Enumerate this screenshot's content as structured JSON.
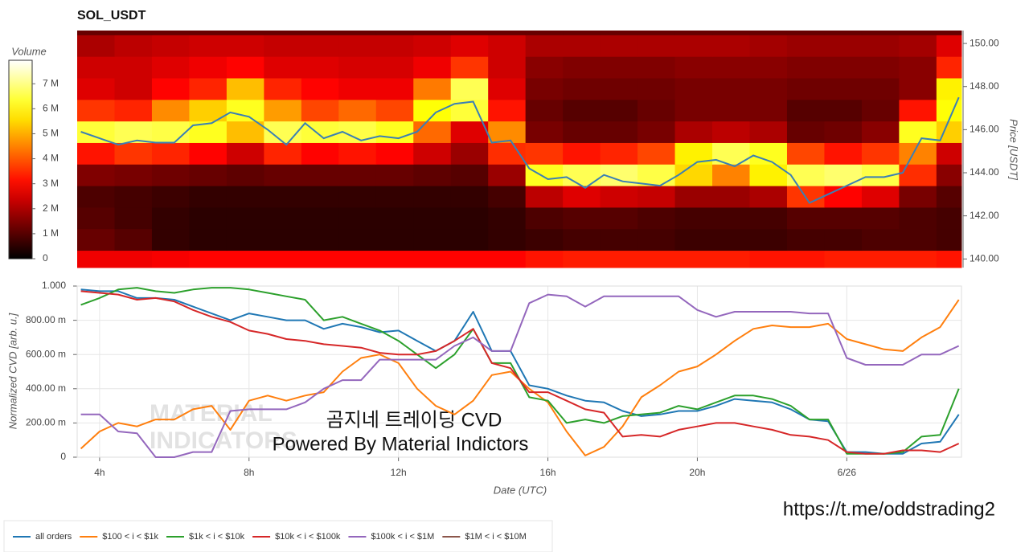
{
  "chart_data": [
    {
      "type": "heatmap",
      "title": "SOL_USDT",
      "ylabel": "Price [USDT]",
      "xlim": [
        3.4,
        27.07
      ],
      "ylim": [
        139.6,
        150.6
      ],
      "yticks": [
        {
          "value": 140,
          "label": "140.00"
        },
        {
          "value": 142,
          "label": "142.00"
        },
        {
          "value": 144,
          "label": "144.00"
        },
        {
          "value": 146,
          "label": "146.00"
        },
        {
          "value": 148,
          "label": "148.00"
        },
        {
          "value": 150,
          "label": "150.00"
        }
      ],
      "xbins": [
        3.4,
        4.4,
        5.4,
        6.4,
        7.4,
        8.4,
        9.4,
        10.4,
        11.4,
        12.4,
        13.4,
        14.4,
        15.4,
        16.4,
        17.4,
        18.4,
        19.4,
        20.4,
        21.4,
        22.4,
        23.4,
        24.4,
        25.4,
        26.4,
        27.07
      ],
      "ybins": [
        139.6,
        140.4,
        141.4,
        142.4,
        143.4,
        144.4,
        145.4,
        146.4,
        147.4,
        148.4,
        149.4,
        150.4,
        150.6
      ],
      "values": [
        [
          2.8,
          2.8,
          2.9,
          3,
          3,
          3,
          3,
          3,
          3,
          3,
          3,
          3,
          3.2,
          3.3,
          3.3,
          3.3,
          3.3,
          3.3,
          3.2,
          3.2,
          3.3,
          3.3,
          3.3,
          3.2
        ],
        [
          1.2,
          1.0,
          0.6,
          0.5,
          0.5,
          0.5,
          0.5,
          0.5,
          0.5,
          0.5,
          0.5,
          0.6,
          0.7,
          0.8,
          0.8,
          0.8,
          0.7,
          0.7,
          0.7,
          0.8,
          0.8,
          0.9,
          0.9,
          0.8
        ],
        [
          1.0,
          0.8,
          0.6,
          0.5,
          0.5,
          0.5,
          0.5,
          0.5,
          0.5,
          0.5,
          0.5,
          0.6,
          0.9,
          1.0,
          1.0,
          0.9,
          0.8,
          0.8,
          0.8,
          1.0,
          1.0,
          1.0,
          0.9,
          0.8
        ],
        [
          0.9,
          0.8,
          0.7,
          0.6,
          0.6,
          0.6,
          0.6,
          0.6,
          0.6,
          0.6,
          0.6,
          0.8,
          2.2,
          2.6,
          2.4,
          2.3,
          1.8,
          1.8,
          2.0,
          3.6,
          3.0,
          2.6,
          1.4,
          1.0
        ],
        [
          1.5,
          1.4,
          1.3,
          1.2,
          1.1,
          1.2,
          1.2,
          1.2,
          1.2,
          1.1,
          1.0,
          1.8,
          6.2,
          6.6,
          6.8,
          6.5,
          5.5,
          4.5,
          5.8,
          6.6,
          6.8,
          6.5,
          3.5,
          1.6
        ],
        [
          3.2,
          3.6,
          3.4,
          3.0,
          2.4,
          3.4,
          3.0,
          3.2,
          3.0,
          2.4,
          1.8,
          3.5,
          3.6,
          3.2,
          3.4,
          3.8,
          5.8,
          6.6,
          6.2,
          3.8,
          3.2,
          3.6,
          4.5,
          2.4
        ],
        [
          6.4,
          6.6,
          6.5,
          6.2,
          5.2,
          6.6,
          6.4,
          6.5,
          6.2,
          4.2,
          2.6,
          4.6,
          1.4,
          1.2,
          1.2,
          1.4,
          2.0,
          2.2,
          2.0,
          1.2,
          1.3,
          1.6,
          6.2,
          5.4
        ],
        [
          3.6,
          3.4,
          4.6,
          5.4,
          6.2,
          4.8,
          3.8,
          4.2,
          3.8,
          6.0,
          6.4,
          3.2,
          1.2,
          1.0,
          1.0,
          1.2,
          1.4,
          1.4,
          1.4,
          1.0,
          1.0,
          1.2,
          3.2,
          6.0
        ],
        [
          2.6,
          2.4,
          3.0,
          3.4,
          5.2,
          3.4,
          3.0,
          2.8,
          2.8,
          4.4,
          6.6,
          2.6,
          1.4,
          1.3,
          1.3,
          1.3,
          1.4,
          1.4,
          1.4,
          1.3,
          1.3,
          1.3,
          1.6,
          5.8
        ],
        [
          2.4,
          2.4,
          2.6,
          2.8,
          3.0,
          2.6,
          2.6,
          2.5,
          2.5,
          2.8,
          3.6,
          2.4,
          1.6,
          1.5,
          1.5,
          1.5,
          1.6,
          1.6,
          1.6,
          1.5,
          1.5,
          1.5,
          1.6,
          3.4
        ],
        [
          2.0,
          2.2,
          2.3,
          2.4,
          2.4,
          2.3,
          2.3,
          2.3,
          2.3,
          2.4,
          2.6,
          2.4,
          2.0,
          2.0,
          2.0,
          2.0,
          2.0,
          2.0,
          1.9,
          1.8,
          1.8,
          1.8,
          1.9,
          2.6
        ],
        [
          1.2,
          1.2,
          1.2,
          1.2,
          1.2,
          1.2,
          1.2,
          1.2,
          1.2,
          1.2,
          1.2,
          1.2,
          1.2,
          1.2,
          1.2,
          1.2,
          1.2,
          1.2,
          1.2,
          1.2,
          1.2,
          1.2,
          1.2,
          1.2
        ]
      ],
      "colorbar": {
        "title": "Volume",
        "clim": [
          0,
          7.94
        ],
        "colormap": "hot",
        "ticks": [
          0,
          {
            "value": 1,
            "label": "1 M"
          },
          {
            "value": 2,
            "label": "2 M"
          },
          {
            "value": 3,
            "label": "3 M"
          },
          {
            "value": 4,
            "label": "4 M"
          },
          {
            "value": 5,
            "label": "5 M"
          },
          {
            "value": 6,
            "label": "6 M"
          },
          {
            "value": 7,
            "label": "7 M"
          }
        ]
      },
      "line": {
        "color": "#3a7fb5",
        "x": [
          3.5,
          4,
          4.5,
          5,
          5.5,
          6,
          6.5,
          7,
          7.5,
          8,
          8.5,
          9,
          9.5,
          10,
          10.5,
          11,
          11.5,
          12,
          12.5,
          13,
          13.5,
          14,
          14.5,
          15,
          15.5,
          16,
          16.5,
          17,
          17.5,
          18,
          18.5,
          19,
          19.5,
          20,
          20.5,
          21,
          21.5,
          22,
          22.5,
          23,
          23.5,
          24,
          24.5,
          25,
          25.5,
          26,
          26.5,
          27
        ],
        "values": [
          145.9,
          145.6,
          145.3,
          145.5,
          145.4,
          145.4,
          146.2,
          146.3,
          146.8,
          146.6,
          146.0,
          145.3,
          146.3,
          145.6,
          145.9,
          145.5,
          145.7,
          145.6,
          145.9,
          146.8,
          147.2,
          147.3,
          145.4,
          145.5,
          144.2,
          143.7,
          143.8,
          143.3,
          143.9,
          143.6,
          143.5,
          143.4,
          143.9,
          144.5,
          144.6,
          144.3,
          144.8,
          144.5,
          143.9,
          142.6,
          143.0,
          143.4,
          143.8,
          143.8,
          144.0,
          145.6,
          145.5,
          147.5
        ]
      }
    },
    {
      "type": "line",
      "xlabel": "Date (UTC)",
      "ylabel": "Normalized CVD [arb. u.]",
      "grid": true,
      "legend": "bottom-left",
      "xlim": [
        3.4,
        27.07
      ],
      "ylim": [
        0,
        1
      ],
      "xticks": [
        {
          "value": 4,
          "label": "4h"
        },
        {
          "value": 8,
          "label": "8h"
        },
        {
          "value": 12,
          "label": "12h"
        },
        {
          "value": 16,
          "label": "16h"
        },
        {
          "value": 20,
          "label": "20h"
        },
        {
          "value": 24,
          "label": "6/26"
        }
      ],
      "yticks": [
        0,
        {
          "value": 0.2,
          "label": "200.00 m"
        },
        {
          "value": 0.4,
          "label": "400.00 m"
        },
        {
          "value": 0.6,
          "label": "600.00 m"
        },
        {
          "value": 0.8,
          "label": "800.00 m"
        },
        {
          "value": 1,
          "label": "1.000"
        }
      ],
      "x": [
        3.5,
        4,
        4.5,
        5,
        5.5,
        6,
        6.5,
        7,
        7.5,
        8,
        8.5,
        9,
        9.5,
        10,
        10.5,
        11,
        11.5,
        12,
        12.5,
        13,
        13.5,
        14,
        14.5,
        15,
        15.5,
        16,
        16.5,
        17,
        17.5,
        18,
        18.5,
        19,
        19.5,
        20,
        20.5,
        21,
        21.5,
        22,
        22.5,
        23,
        23.5,
        24,
        24.5,
        25,
        25.5,
        26,
        26.5,
        27
      ],
      "series": [
        {
          "name": "all orders",
          "color": "#1f77b4",
          "values": [
            0.98,
            0.97,
            0.97,
            0.93,
            0.93,
            0.92,
            0.88,
            0.84,
            0.8,
            0.84,
            0.82,
            0.8,
            0.8,
            0.75,
            0.78,
            0.76,
            0.73,
            0.74,
            0.68,
            0.62,
            0.68,
            0.85,
            0.62,
            0.62,
            0.42,
            0.4,
            0.36,
            0.33,
            0.32,
            0.27,
            0.24,
            0.25,
            0.27,
            0.27,
            0.3,
            0.34,
            0.33,
            0.32,
            0.28,
            0.22,
            0.21,
            0.03,
            0.03,
            0.02,
            0.02,
            0.08,
            0.09,
            0.25
          ]
        },
        {
          "name": "$100 < i < $1k",
          "color": "#ff7f0e",
          "values": [
            0.05,
            0.15,
            0.2,
            0.18,
            0.22,
            0.22,
            0.28,
            0.3,
            0.16,
            0.33,
            0.36,
            0.33,
            0.36,
            0.38,
            0.5,
            0.58,
            0.6,
            0.55,
            0.4,
            0.3,
            0.25,
            0.33,
            0.48,
            0.5,
            0.4,
            0.32,
            0.15,
            0.01,
            0.06,
            0.18,
            0.35,
            0.42,
            0.5,
            0.53,
            0.6,
            0.68,
            0.75,
            0.77,
            0.76,
            0.76,
            0.78,
            0.69,
            0.66,
            0.63,
            0.62,
            0.7,
            0.76,
            0.92
          ]
        },
        {
          "name": "$1k < i < $10k",
          "color": "#2ca02c",
          "values": [
            0.89,
            0.93,
            0.98,
            0.99,
            0.97,
            0.96,
            0.98,
            0.99,
            0.99,
            0.98,
            0.96,
            0.94,
            0.92,
            0.8,
            0.82,
            0.78,
            0.74,
            0.68,
            0.6,
            0.52,
            0.6,
            0.75,
            0.55,
            0.55,
            0.35,
            0.33,
            0.2,
            0.22,
            0.2,
            0.24,
            0.25,
            0.26,
            0.3,
            0.28,
            0.32,
            0.36,
            0.36,
            0.34,
            0.3,
            0.22,
            0.22,
            0.02,
            0.02,
            0.02,
            0.03,
            0.12,
            0.13,
            0.4
          ]
        },
        {
          "name": "$10k < i < $100k",
          "color": "#d62728",
          "values": [
            0.97,
            0.96,
            0.95,
            0.92,
            0.93,
            0.91,
            0.86,
            0.82,
            0.79,
            0.74,
            0.72,
            0.69,
            0.68,
            0.66,
            0.65,
            0.64,
            0.61,
            0.6,
            0.6,
            0.62,
            0.68,
            0.75,
            0.55,
            0.52,
            0.38,
            0.38,
            0.33,
            0.28,
            0.26,
            0.12,
            0.13,
            0.12,
            0.16,
            0.18,
            0.2,
            0.2,
            0.18,
            0.16,
            0.13,
            0.12,
            0.1,
            0.03,
            0.02,
            0.02,
            0.04,
            0.04,
            0.03,
            0.08
          ]
        },
        {
          "name": "$100k < i < $1M",
          "color": "#9467bd",
          "values": [
            0.25,
            0.25,
            0.15,
            0.14,
            0,
            0,
            0.03,
            0.03,
            0.27,
            0.28,
            0.28,
            0.28,
            0.32,
            0.4,
            0.45,
            0.45,
            0.57,
            0.57,
            0.57,
            0.57,
            0.65,
            0.7,
            0.62,
            0.62,
            0.9,
            0.95,
            0.94,
            0.88,
            0.94,
            0.94,
            0.94,
            0.94,
            0.94,
            0.86,
            0.82,
            0.85,
            0.85,
            0.85,
            0.85,
            0.84,
            0.84,
            0.58,
            0.54,
            0.54,
            0.54,
            0.6,
            0.6,
            0.65
          ]
        },
        {
          "name": "$1M < i < $10M",
          "color": "#8c564b",
          "values": [
            null,
            null,
            null,
            null,
            null,
            null,
            null,
            null,
            null,
            null,
            null,
            null,
            null,
            null,
            null,
            null,
            null,
            null,
            null,
            null,
            null,
            null,
            null,
            null,
            null,
            null,
            null,
            null,
            null,
            null,
            null,
            null,
            null,
            null,
            null,
            null,
            null,
            null,
            null,
            null,
            null,
            null,
            null,
            null,
            null,
            null,
            null,
            null
          ]
        }
      ]
    }
  ],
  "watermark": [
    "MATERIAL",
    "INDICATORS"
  ],
  "annotations": [
    "곰지네 트레이딩 CVD",
    "Powered By Material Indictors"
  ],
  "footer_link": "https://t.me/oddstrading2"
}
